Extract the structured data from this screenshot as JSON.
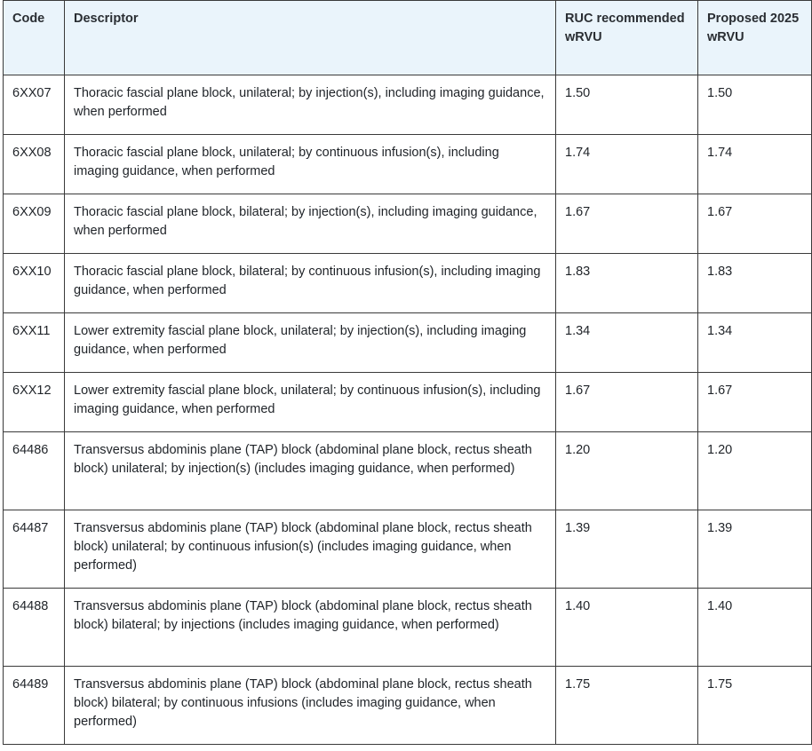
{
  "table": {
    "headers": {
      "code": "Code",
      "descriptor": "Descriptor",
      "ruc": "RUC recommended wRVU",
      "proposed": "Proposed 2025 wRVU"
    },
    "rows": [
      {
        "code": "6XX07",
        "descriptor": "Thoracic fascial plane block, unilateral; by injection(s), including imaging guidance, when performed",
        "ruc": "1.50",
        "proposed": "1.50"
      },
      {
        "code": "6XX08",
        "descriptor": "Thoracic fascial plane block, unilateral; by continuous infusion(s), including imaging guidance, when performed",
        "ruc": "1.74",
        "proposed": "1.74"
      },
      {
        "code": "6XX09",
        "descriptor": "Thoracic fascial plane block, bilateral; by injection(s), including imaging guidance, when performed",
        "ruc": "1.67",
        "proposed": "1.67"
      },
      {
        "code": "6XX10",
        "descriptor": "Thoracic fascial plane block, bilateral; by continuous infusion(s), including imaging guidance, when performed",
        "ruc": "1.83",
        "proposed": "1.83"
      },
      {
        "code": "6XX11",
        "descriptor": "Lower extremity fascial plane block, unilateral; by injection(s), including imaging guidance, when performed",
        "ruc": "1.34",
        "proposed": "1.34"
      },
      {
        "code": "6XX12",
        "descriptor": "Lower extremity fascial plane block, unilateral; by continuous infusion(s), including imaging guidance, when performed",
        "ruc": "1.67",
        "proposed": "1.67"
      },
      {
        "code": "64486",
        "descriptor": "Transversus abdominis plane (TAP) block (abdominal plane block, rectus sheath block) unilateral; by injection(s) (includes imaging guidance, when performed)",
        "ruc": "1.20",
        "proposed": "1.20"
      },
      {
        "code": "64487",
        "descriptor": "Transversus abdominis plane (TAP) block (abdominal plane block, rectus sheath block) unilateral; by continuous infusion(s) (includes imaging guidance, when performed)",
        "ruc": "1.39",
        "proposed": "1.39"
      },
      {
        "code": "64488",
        "descriptor": "Transversus abdominis plane (TAP) block (abdominal plane block, rectus sheath block) bilateral; by injections (includes imaging guidance, when performed)",
        "ruc": "1.40",
        "proposed": "1.40"
      },
      {
        "code": "64489",
        "descriptor": "Transversus abdominis plane (TAP) block (abdominal plane block, rectus sheath block) bilateral; by continuous infusions (includes imaging guidance, when performed)",
        "ruc": "1.75",
        "proposed": "1.75"
      }
    ]
  }
}
